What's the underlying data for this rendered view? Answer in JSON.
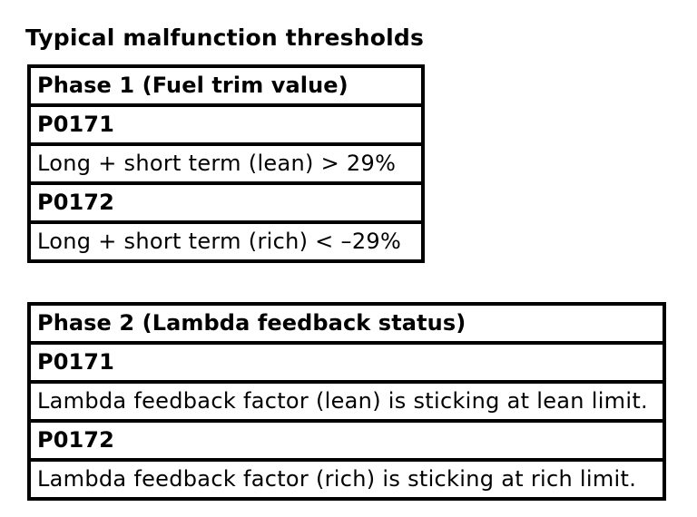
{
  "title": "Typical malfunction thresholds",
  "tables": [
    {
      "header": "Phase 1 (Fuel trim value)",
      "rows": [
        {
          "text": "P0171",
          "bold": true
        },
        {
          "text": "Long + short term (lean) > 29%",
          "bold": false
        },
        {
          "text": "P0172",
          "bold": true
        },
        {
          "text": "Long + short term (rich) < –29%",
          "bold": false
        }
      ]
    },
    {
      "header": "Phase 2 (Lambda feedback status)",
      "rows": [
        {
          "text": "P0171",
          "bold": true
        },
        {
          "text": "Lambda feedback factor (lean) is sticking at lean limit.",
          "bold": false
        },
        {
          "text": "P0172",
          "bold": true
        },
        {
          "text": "Lambda feedback factor (rich) is sticking at rich limit.",
          "bold": false
        }
      ]
    }
  ],
  "colors": {
    "text": "#000000",
    "border": "#000000",
    "background": "#ffffff"
  }
}
